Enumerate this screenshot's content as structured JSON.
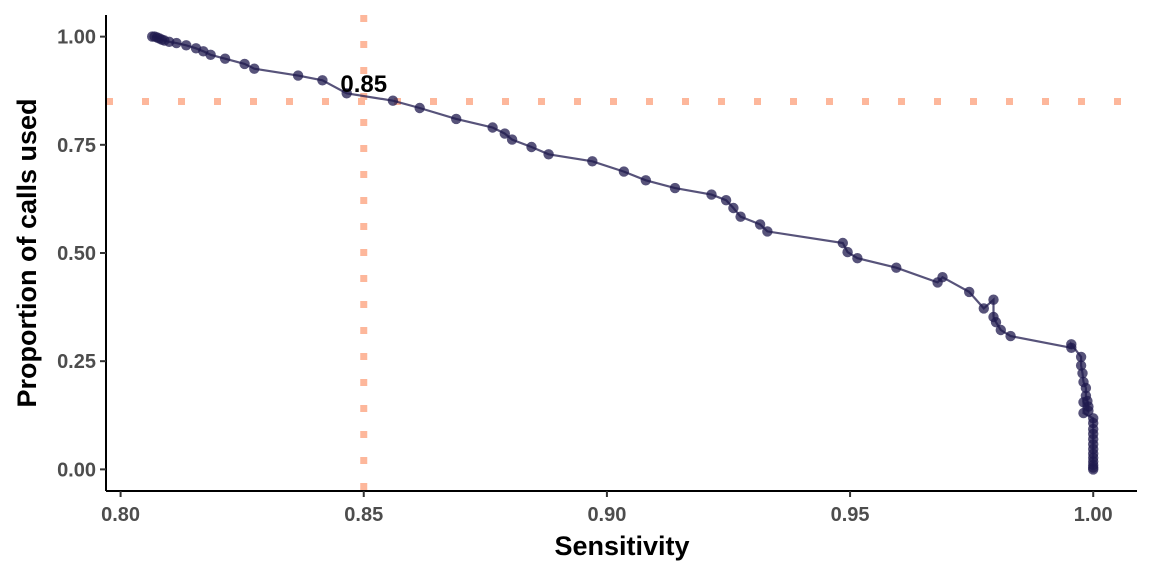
{
  "chart_data": {
    "type": "line",
    "title": "",
    "xlabel": "Sensitivity",
    "ylabel": "Proportion of calls used",
    "xlim": [
      0.797,
      1.009
    ],
    "ylim": [
      -0.05,
      1.05
    ],
    "x_ticks": [
      0.8,
      0.85,
      0.9,
      0.95,
      1.0
    ],
    "x_tick_labels": [
      "0.80",
      "0.85",
      "0.90",
      "0.95",
      "1.00"
    ],
    "y_ticks": [
      0.0,
      0.25,
      0.5,
      0.75,
      1.0
    ],
    "y_tick_labels": [
      "0.00",
      "0.25",
      "0.50",
      "0.75",
      "1.00"
    ],
    "grid": false,
    "colors": {
      "series": "#1f1a4d",
      "reference": "#fdb79b"
    },
    "reference_lines": {
      "vertical_x": 0.85,
      "horizontal_y": 0.85
    },
    "annotation": {
      "text": "0.85",
      "x": 0.85,
      "y": 0.89
    },
    "series": [
      {
        "x": [
          0.8065,
          0.807,
          0.8075,
          0.808,
          0.8085,
          0.809,
          0.81,
          0.8115,
          0.8135,
          0.8155,
          0.817,
          0.8185,
          0.8215,
          0.8255,
          0.8275,
          0.8365,
          0.8415,
          0.8465,
          0.856,
          0.8615,
          0.869,
          0.8765,
          0.879,
          0.8805,
          0.8845,
          0.888,
          0.897,
          0.9035,
          0.908,
          0.914,
          0.9215,
          0.9245,
          0.926,
          0.9275,
          0.9315,
          0.933,
          0.9485,
          0.9495,
          0.9515,
          0.9595,
          0.968,
          0.969,
          0.9745,
          0.9775,
          0.9795,
          0.9795,
          0.98,
          0.981,
          0.983,
          0.9955,
          0.9955,
          0.9975,
          0.9975,
          0.9978,
          0.998,
          0.9985,
          0.9985,
          0.9988,
          0.999,
          0.999,
          0.998,
          0.998,
          1.0,
          1.0,
          1.0,
          1.0,
          1.0,
          1.0,
          1.0,
          1.0,
          1.0,
          1.0,
          1.0,
          1.0,
          1.0
        ],
        "y": [
          1.0,
          1.0,
          0.998,
          0.996,
          0.993,
          0.991,
          0.988,
          0.985,
          0.98,
          0.973,
          0.966,
          0.958,
          0.949,
          0.937,
          0.926,
          0.91,
          0.899,
          0.869,
          0.852,
          0.835,
          0.81,
          0.79,
          0.776,
          0.762,
          0.745,
          0.728,
          0.712,
          0.688,
          0.668,
          0.65,
          0.635,
          0.622,
          0.604,
          0.584,
          0.566,
          0.55,
          0.523,
          0.502,
          0.488,
          0.466,
          0.432,
          0.444,
          0.41,
          0.372,
          0.392,
          0.352,
          0.34,
          0.322,
          0.308,
          0.281,
          0.289,
          0.26,
          0.24,
          0.222,
          0.202,
          0.188,
          0.17,
          0.158,
          0.145,
          0.135,
          0.155,
          0.13,
          0.118,
          0.107,
          0.093,
          0.082,
          0.07,
          0.058,
          0.047,
          0.036,
          0.027,
          0.018,
          0.01,
          0.004,
          0.0
        ]
      }
    ]
  }
}
